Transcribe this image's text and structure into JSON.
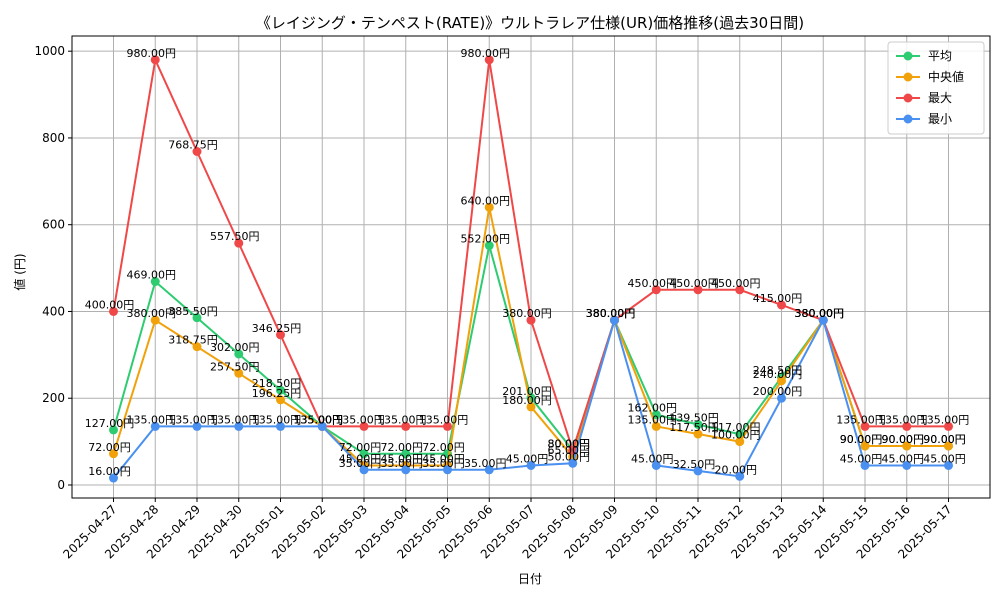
{
  "chart_data": {
    "type": "line",
    "title": "《レイジング・テンペスト(RATE)》ウルトラレア仕様(UR)価格推移(過去30日間)",
    "xlabel": "日付",
    "ylabel": "値 (円)",
    "ylim": [
      -30,
      1035
    ],
    "yticks": [
      0,
      200,
      400,
      600,
      800,
      1000
    ],
    "grid": true,
    "legend_position": "top-right",
    "value_suffix": "円",
    "categories": [
      "2025-04-27",
      "2025-04-28",
      "2025-04-29",
      "2025-04-30",
      "2025-05-01",
      "2025-05-02",
      "2025-05-03",
      "2025-05-04",
      "2025-05-05",
      "2025-05-06",
      "2025-05-07",
      "2025-05-08",
      "2025-05-09",
      "2025-05-10",
      "2025-05-11",
      "2025-05-12",
      "2025-05-13",
      "2025-05-14",
      "2025-05-15",
      "2025-05-16",
      "2025-05-17"
    ],
    "series": [
      {
        "name": "平均",
        "color": "#2ecc71",
        "values": [
          127.0,
          469.0,
          385.5,
          302.0,
          218.5,
          135.0,
          72.0,
          72.0,
          72.0,
          552.0,
          201.0,
          80.0,
          380.0,
          162.0,
          139.5,
          117.0,
          248.5,
          380.0,
          90.0,
          90.0,
          90.0
        ]
      },
      {
        "name": "中央値",
        "color": "#f1a10a",
        "values": [
          72.0,
          380.0,
          318.75,
          257.5,
          196.25,
          135.0,
          45.0,
          45.0,
          45.0,
          640.0,
          180.0,
          65.0,
          380.0,
          135.0,
          117.5,
          100.0,
          240.0,
          380.0,
          90.0,
          90.0,
          90.0
        ]
      },
      {
        "name": "最大",
        "color": "#f04848",
        "values": [
          400.0,
          980.0,
          768.75,
          557.5,
          346.25,
          135.0,
          135.0,
          135.0,
          135.0,
          980.0,
          380.0,
          80.0,
          380.0,
          450.0,
          450.0,
          450.0,
          415.0,
          380.0,
          135.0,
          135.0,
          135.0
        ]
      },
      {
        "name": "最小",
        "color": "#4a90f0",
        "values": [
          16.0,
          135.0,
          135.0,
          135.0,
          135.0,
          135.0,
          35.0,
          35.0,
          35.0,
          35.0,
          45.0,
          50.0,
          380.0,
          45.0,
          32.5,
          20.0,
          200.0,
          380.0,
          45.0,
          45.0,
          45.0
        ]
      }
    ]
  }
}
